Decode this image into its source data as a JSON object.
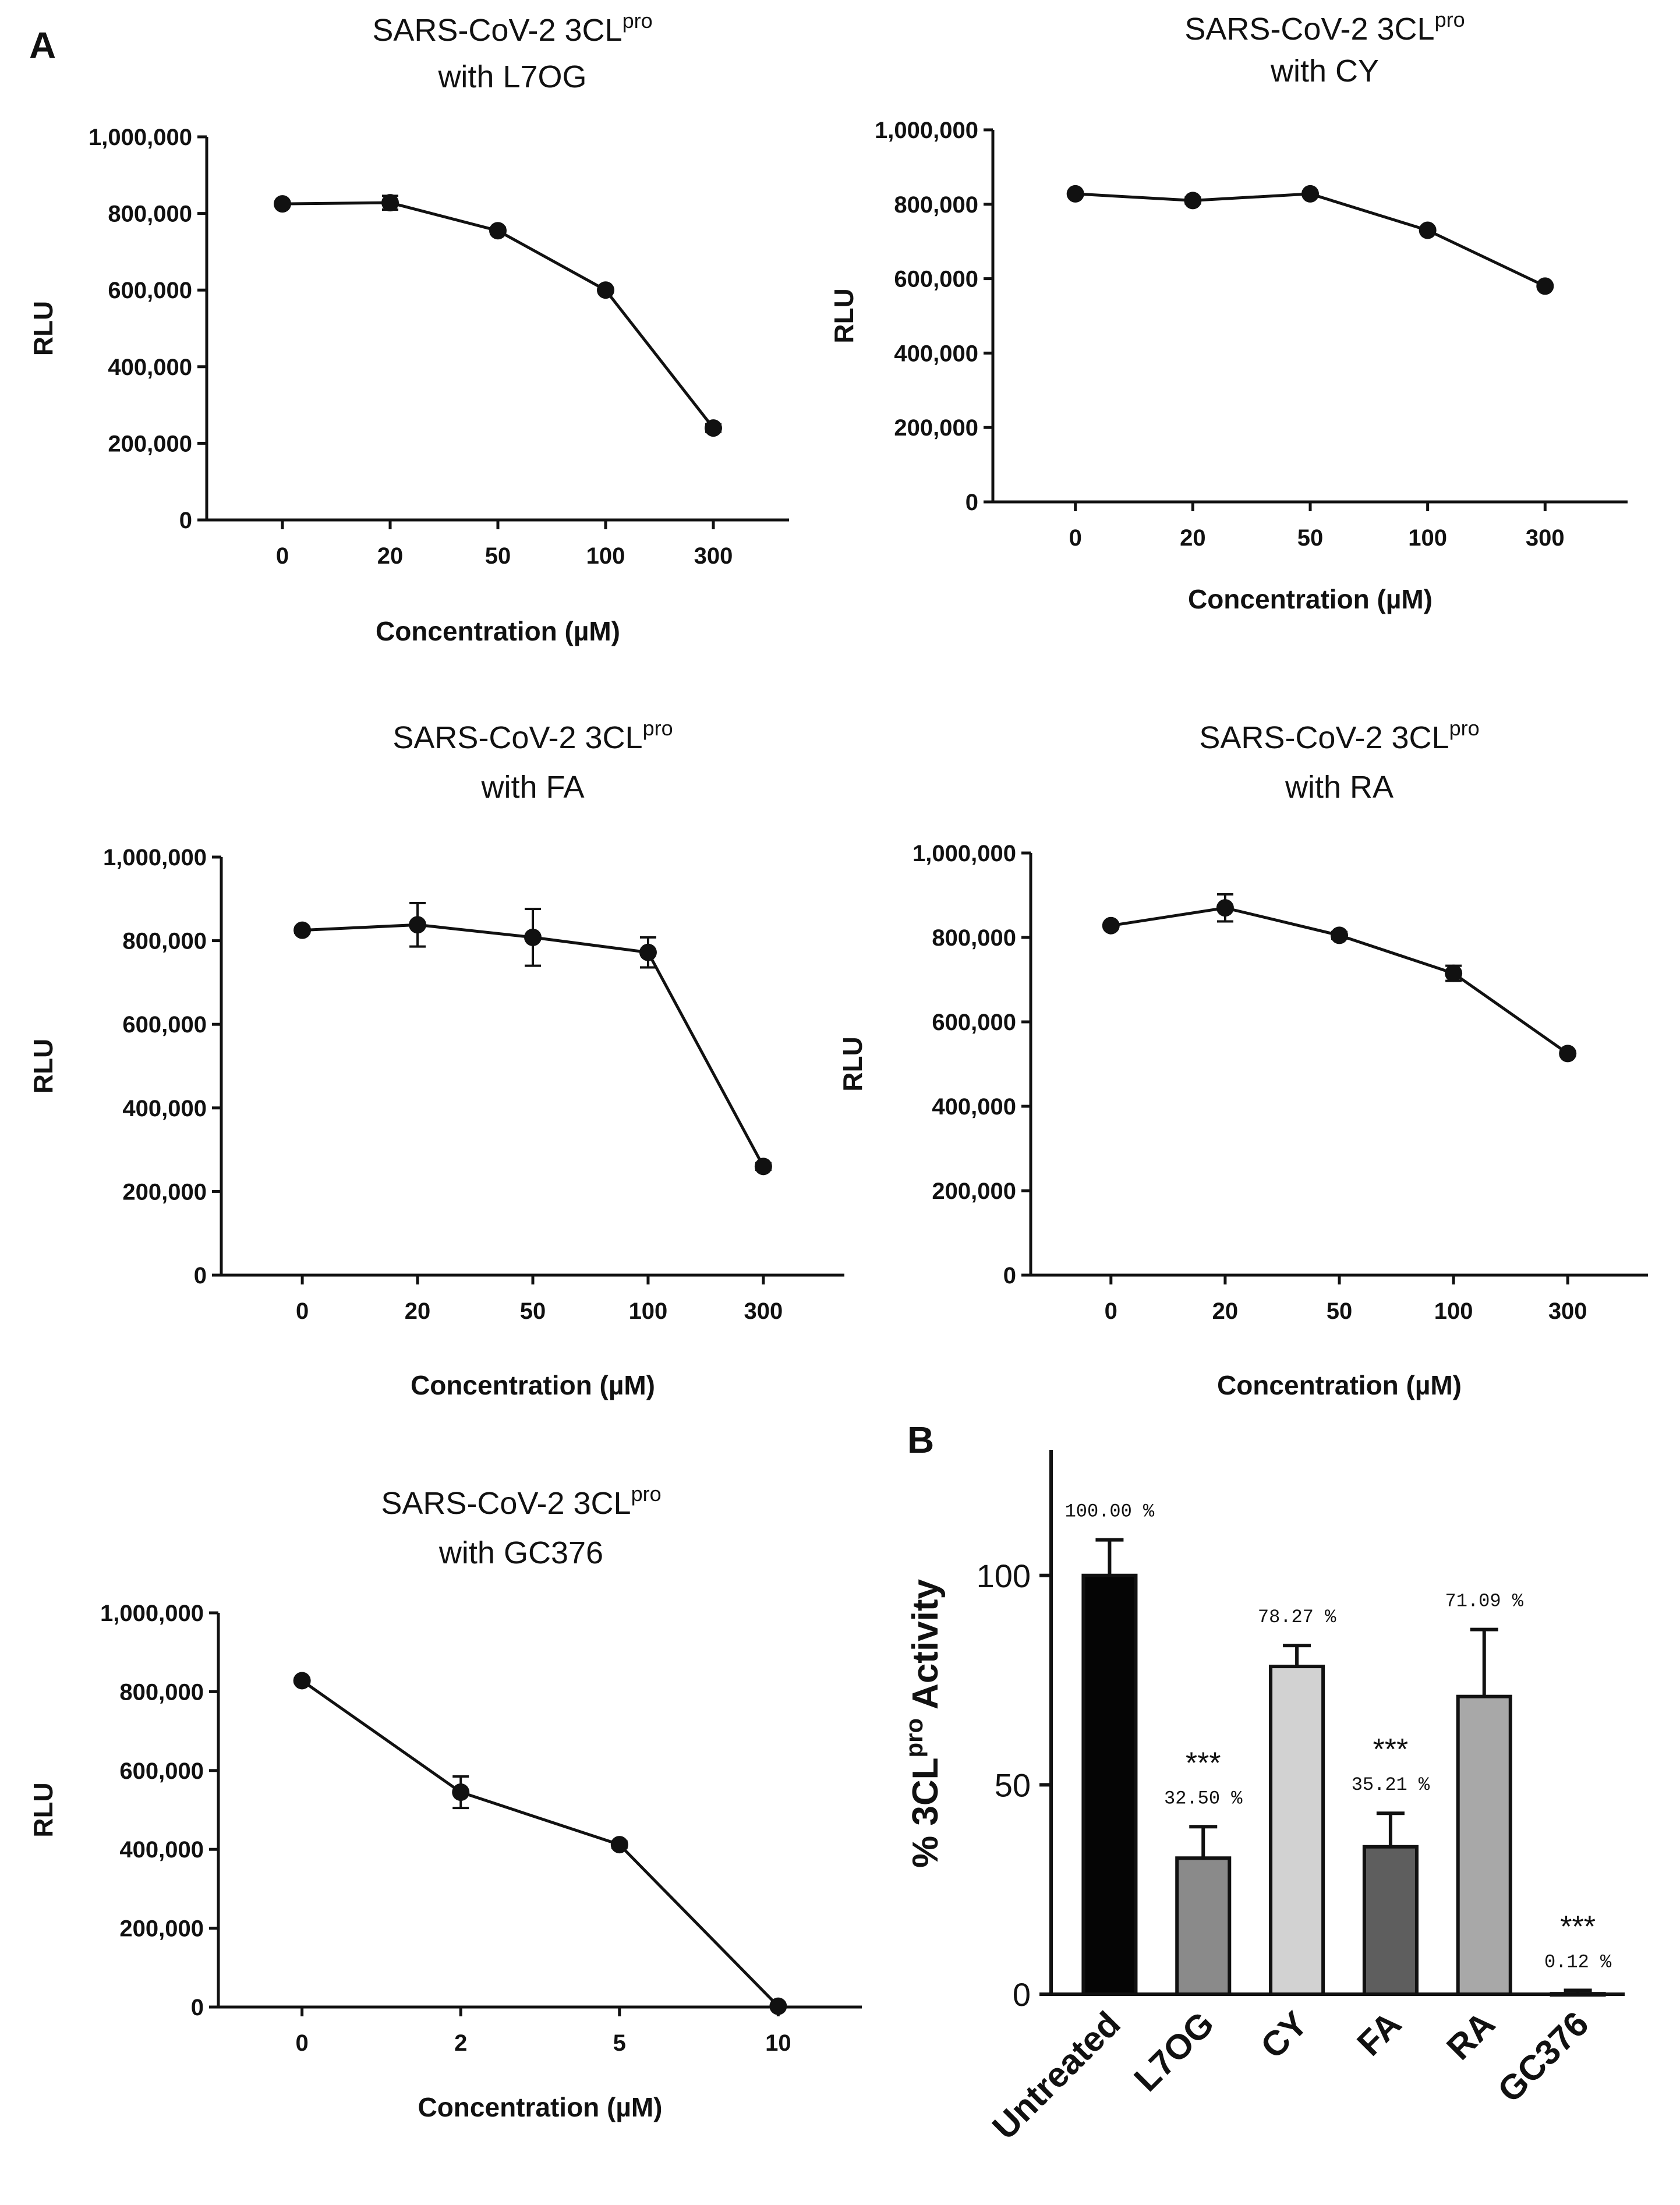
{
  "panel_labels": {
    "a": "A",
    "b": "B"
  },
  "chart_data": [
    {
      "type": "line",
      "title_main": "SARS-CoV-2 3CL",
      "title_sup": "pro",
      "title_line2": "with L7OG",
      "xlabel": "Concentration (µM)",
      "ylabel": "RLU",
      "categories": [
        "0",
        "20",
        "50",
        "100",
        "300"
      ],
      "values": [
        825000,
        828000,
        755000,
        600000,
        240000
      ],
      "errors": [
        5000,
        18000,
        8000,
        6000,
        10000
      ],
      "ylim": [
        0,
        1000000
      ],
      "yticks": [
        0,
        200000,
        400000,
        600000,
        800000,
        1000000
      ],
      "ytick_labels": [
        "0",
        "200,000",
        "400,000",
        "600,000",
        "800,000",
        "1,000,000"
      ]
    },
    {
      "type": "line",
      "title_main": "SARS-CoV-2 3CL",
      "title_sup": "pro",
      "title_line2": "with CY",
      "xlabel": "Concentration (µM)",
      "ylabel": "RLU",
      "categories": [
        "0",
        "20",
        "50",
        "100",
        "300"
      ],
      "values": [
        828000,
        810000,
        828000,
        730000,
        580000
      ],
      "errors": [
        5000,
        8000,
        6000,
        6000,
        6000
      ],
      "ylim": [
        0,
        1000000
      ],
      "yticks": [
        0,
        200000,
        400000,
        600000,
        800000,
        1000000
      ],
      "ytick_labels": [
        "0",
        "200,000",
        "400,000",
        "600,000",
        "800,000",
        "1,000,000"
      ]
    },
    {
      "type": "line",
      "title_main": "SARS-CoV-2 3CL",
      "title_sup": "pro",
      "title_line2": "with FA",
      "xlabel": "Concentration (µM)",
      "ylabel": "RLU",
      "categories": [
        "0",
        "20",
        "50",
        "100",
        "300"
      ],
      "values": [
        825000,
        838000,
        808000,
        772000,
        260000
      ],
      "errors": [
        6000,
        52000,
        68000,
        36000,
        8000
      ],
      "ylim": [
        0,
        1000000
      ],
      "yticks": [
        0,
        200000,
        400000,
        600000,
        800000,
        1000000
      ],
      "ytick_labels": [
        "0",
        "200,000",
        "400,000",
        "600,000",
        "800,000",
        "1,000,000"
      ]
    },
    {
      "type": "line",
      "title_main": "SARS-CoV-2 3CL",
      "title_sup": "pro",
      "title_line2": "with RA",
      "xlabel": "Concentration (µM)",
      "ylabel": "RLU",
      "categories": [
        "0",
        "20",
        "50",
        "100",
        "300"
      ],
      "values": [
        828000,
        870000,
        805000,
        715000,
        525000
      ],
      "errors": [
        6000,
        32000,
        8000,
        18000,
        6000
      ],
      "ylim": [
        0,
        1000000
      ],
      "yticks": [
        0,
        200000,
        400000,
        600000,
        800000,
        1000000
      ],
      "ytick_labels": [
        "0",
        "200,000",
        "400,000",
        "600,000",
        "800,000",
        "1,000,000"
      ]
    },
    {
      "type": "line",
      "title_main": "SARS-CoV-2 3CL",
      "title_sup": "pro",
      "title_line2": "with GC376",
      "xlabel": "Concentration (µM)",
      "ylabel": "RLU",
      "categories": [
        "0",
        "2",
        "5",
        "10"
      ],
      "values": [
        828000,
        545000,
        412000,
        2000
      ],
      "errors": [
        6000,
        40000,
        8000,
        2000
      ],
      "ylim": [
        0,
        1000000
      ],
      "yticks": [
        0,
        200000,
        400000,
        600000,
        800000,
        1000000
      ],
      "ytick_labels": [
        "0",
        "200,000",
        "400,000",
        "600,000",
        "800,000",
        "1,000,000"
      ]
    },
    {
      "type": "bar",
      "ylabel_prefix": "% 3CL",
      "ylabel_sup": "pro",
      "ylabel_suffix": " Activity",
      "categories": [
        "Untreated",
        "L7OG",
        "CY",
        "FA",
        "RA",
        "GC376"
      ],
      "values": [
        100.0,
        32.5,
        78.27,
        35.21,
        71.09,
        0.12
      ],
      "errors": [
        8.5,
        7.5,
        5.0,
        8.0,
        16.0,
        0.8
      ],
      "data_labels": [
        "100.00 %",
        "32.50 %",
        "78.27 %",
        "35.21 %",
        "71.09 %",
        "0.12 %"
      ],
      "significance": [
        "",
        "***",
        "",
        "***",
        "",
        "***"
      ],
      "bar_colors": [
        "#050505",
        "#8a8a8a",
        "#d2d2d2",
        "#5e5e5e",
        "#a8a8a8",
        "#ffffff"
      ],
      "ylim": [
        0,
        130
      ],
      "yticks": [
        0,
        50,
        100
      ],
      "ytick_labels": [
        "0",
        "50",
        "100"
      ]
    }
  ]
}
